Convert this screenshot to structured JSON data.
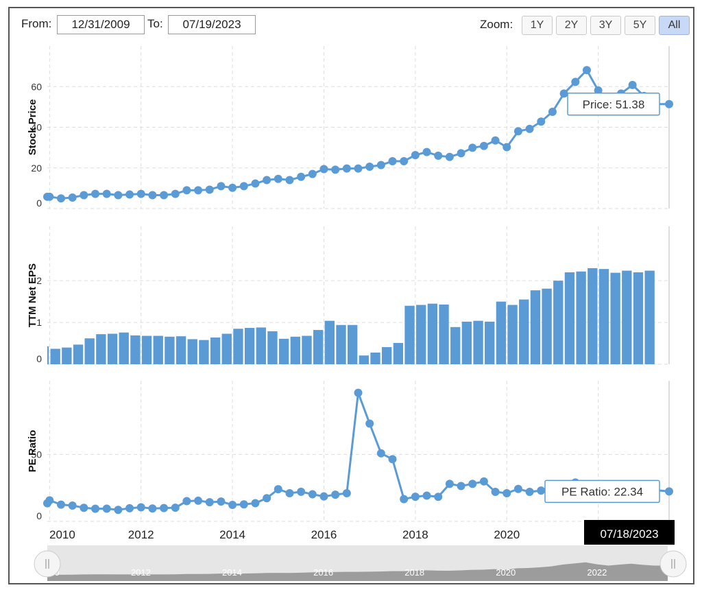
{
  "range": {
    "from_label": "From:",
    "from_value": "12/31/2009",
    "to_label": "To:",
    "to_value": "07/19/2023"
  },
  "zoom": {
    "label": "Zoom:",
    "buttons": [
      "1Y",
      "2Y",
      "3Y",
      "5Y",
      "All"
    ],
    "active": "All"
  },
  "x_axis": {
    "ticks": [
      "2010",
      "2012",
      "2014",
      "2016",
      "2018",
      "2020",
      "2022"
    ],
    "hover_date": "07/18/2023"
  },
  "navigator": {
    "labels": [
      "2010",
      "2012",
      "2014",
      "2016",
      "2018",
      "2020",
      "2022"
    ]
  },
  "colors": {
    "series": "#5b9bd5",
    "bars": "#5b9bd5",
    "grid": "#dddddd",
    "navigator_fill": "#8e8e8e"
  },
  "chart_data": [
    {
      "type": "line",
      "ylabel": "Stock Price",
      "yticks": [
        "0",
        "20",
        "40",
        "60"
      ],
      "ylim": [
        0,
        80
      ],
      "x_range": [
        2009.95,
        2023.55
      ],
      "tooltip": "Price: 51.38",
      "x": [
        2009.75,
        2010.0,
        2010.25,
        2010.5,
        2010.75,
        2011.0,
        2011.25,
        2011.5,
        2011.75,
        2012.0,
        2012.25,
        2012.5,
        2012.75,
        2013.0,
        2013.25,
        2013.5,
        2013.75,
        2014.0,
        2014.25,
        2014.5,
        2014.75,
        2015.0,
        2015.25,
        2015.5,
        2015.75,
        2016.0,
        2016.25,
        2016.5,
        2016.75,
        2017.0,
        2017.25,
        2017.5,
        2017.75,
        2018.0,
        2018.25,
        2018.5,
        2018.75,
        2019.0,
        2019.25,
        2019.5,
        2019.75,
        2020.0,
        2020.25,
        2020.5,
        2020.75,
        2021.0,
        2021.25,
        2021.5,
        2021.75,
        2022.0,
        2022.25,
        2022.5,
        2022.75,
        2023.0,
        2023.25,
        2023.55
      ],
      "y": [
        5.8,
        5.8,
        5.0,
        5.4,
        6.6,
        7.2,
        7.2,
        6.6,
        6.9,
        7.2,
        6.6,
        6.6,
        7.2,
        9.0,
        9.0,
        9.3,
        11.0,
        10.2,
        11.0,
        12.3,
        14.0,
        14.6,
        14.0,
        15.6,
        17.0,
        19.4,
        19.1,
        19.7,
        19.7,
        20.6,
        21.4,
        23.3,
        23.3,
        26.3,
        27.8,
        26.0,
        25.4,
        27.2,
        29.9,
        30.8,
        33.5,
        30.2,
        38.0,
        39.2,
        42.8,
        47.6,
        56.6,
        62.3,
        68.1,
        58.1,
        51.5,
        56.6,
        60.8,
        55.4,
        51.38,
        51.38
      ]
    },
    {
      "type": "bar",
      "ylabel": "TTM Net EPS",
      "yticks": [
        "0",
        "1",
        "2"
      ],
      "ylim": [
        0,
        3.3
      ],
      "x_range": [
        2009.95,
        2023.55
      ],
      "x": [
        2009.75,
        2010.0,
        2010.25,
        2010.5,
        2010.75,
        2011.0,
        2011.25,
        2011.5,
        2011.75,
        2012.0,
        2012.25,
        2012.5,
        2012.75,
        2013.0,
        2013.25,
        2013.5,
        2013.75,
        2014.0,
        2014.25,
        2014.5,
        2014.75,
        2015.0,
        2015.25,
        2015.5,
        2015.75,
        2016.0,
        2016.25,
        2016.5,
        2016.75,
        2017.0,
        2017.25,
        2017.5,
        2017.75,
        2018.0,
        2018.25,
        2018.5,
        2018.75,
        2019.0,
        2019.25,
        2019.5,
        2019.75,
        2020.0,
        2020.25,
        2020.5,
        2020.75,
        2021.0,
        2021.25,
        2021.5,
        2021.75,
        2022.0,
        2022.25,
        2022.5,
        2022.75,
        2023.0
      ],
      "values": [
        0.43,
        0.37,
        0.4,
        0.47,
        0.62,
        0.72,
        0.73,
        0.76,
        0.69,
        0.68,
        0.68,
        0.66,
        0.67,
        0.6,
        0.58,
        0.64,
        0.73,
        0.85,
        0.87,
        0.88,
        0.79,
        0.61,
        0.66,
        0.68,
        0.82,
        1.04,
        0.94,
        0.94,
        0.21,
        0.28,
        0.41,
        0.51,
        1.4,
        1.42,
        1.45,
        1.43,
        0.89,
        1.02,
        1.04,
        1.02,
        1.5,
        1.42,
        1.55,
        1.77,
        1.81,
        2.0,
        2.2,
        2.22,
        2.3,
        2.28,
        2.19,
        2.24,
        2.2,
        2.24
      ]
    },
    {
      "type": "line",
      "ylabel": "PE Ratio",
      "yticks": [
        "0",
        "50"
      ],
      "ylim": [
        0,
        105
      ],
      "x_range": [
        2009.95,
        2023.55
      ],
      "tooltip": "PE Ratio: 22.34",
      "x": [
        2009.75,
        2010.0,
        2010.25,
        2010.5,
        2010.75,
        2011.0,
        2011.25,
        2011.5,
        2011.75,
        2012.0,
        2012.25,
        2012.5,
        2012.75,
        2013.0,
        2013.25,
        2013.5,
        2013.75,
        2014.0,
        2014.25,
        2014.5,
        2014.75,
        2015.0,
        2015.25,
        2015.5,
        2015.75,
        2016.0,
        2016.25,
        2016.5,
        2016.75,
        2017.0,
        2017.25,
        2017.5,
        2017.75,
        2018.0,
        2018.25,
        2018.5,
        2018.75,
        2019.0,
        2019.25,
        2019.5,
        2019.75,
        2020.0,
        2020.25,
        2020.5,
        2020.75,
        2021.0,
        2021.25,
        2021.5,
        2023.55
      ],
      "y": [
        13.5,
        15.7,
        12.5,
        11.8,
        10.1,
        9.4,
        9.5,
        8.6,
        9.8,
        10.5,
        9.6,
        9.9,
        10.2,
        15.1,
        15.4,
        14.3,
        14.8,
        12.3,
        12.7,
        13.6,
        17.3,
        24.0,
        21.0,
        22.1,
        20.2,
        18.6,
        19.9,
        21.0,
        96.0,
        73.0,
        50.8,
        46.4,
        16.6,
        18.4,
        19.2,
        18.3,
        28.0,
        26.4,
        28.0,
        29.8,
        22.0,
        21.0,
        24.2,
        22.0,
        23.0,
        24.0,
        25.0,
        29.0,
        22.34
      ]
    }
  ]
}
